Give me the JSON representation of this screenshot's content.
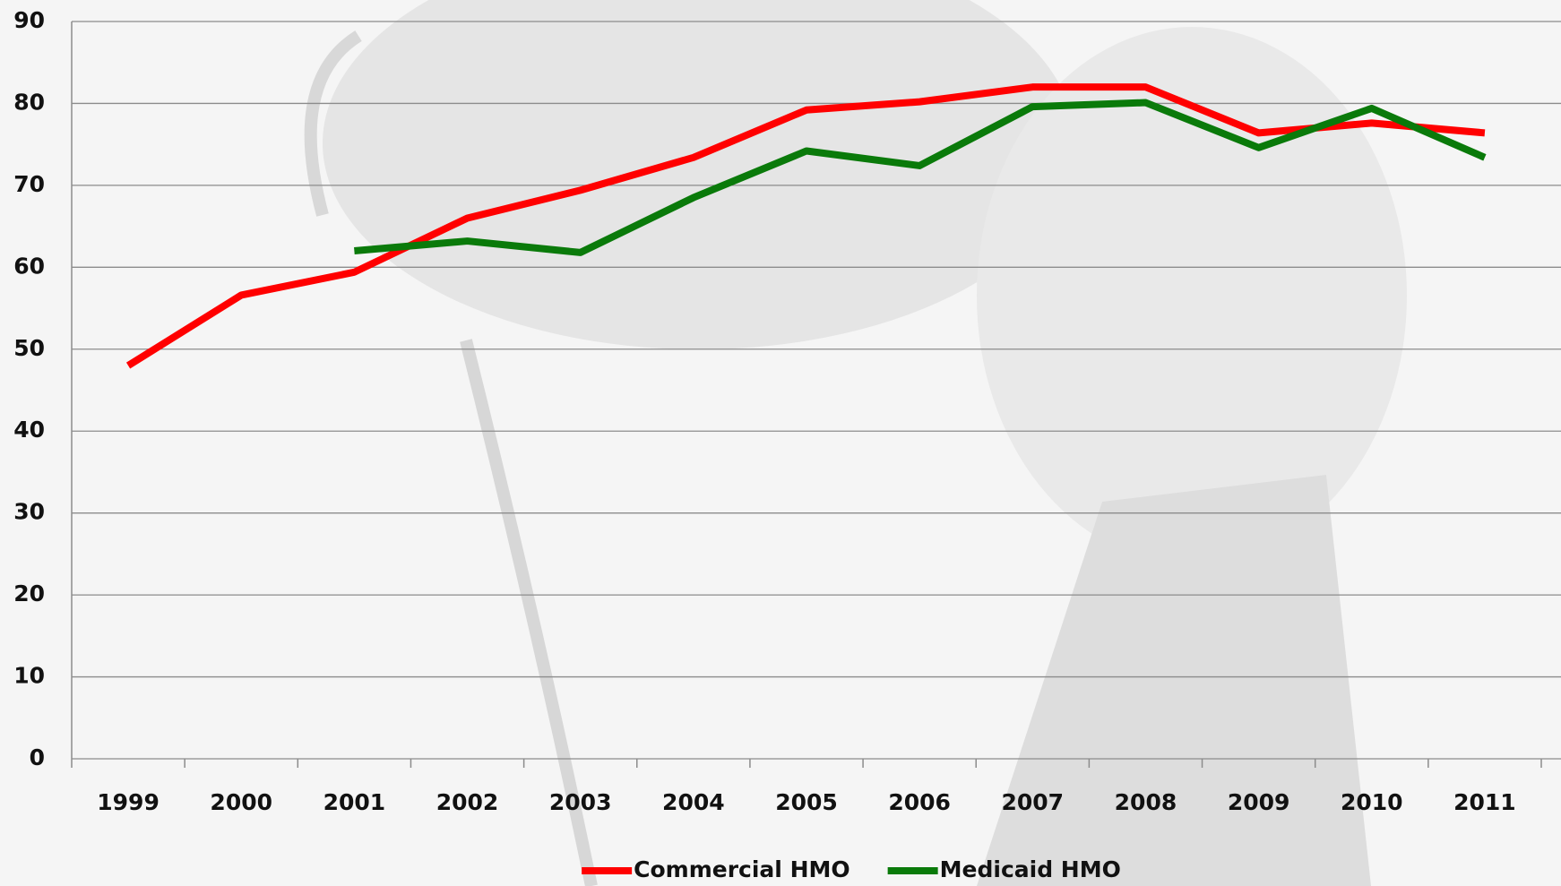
{
  "chart_data": {
    "type": "line",
    "categories": [
      "1999",
      "2000",
      "2001",
      "2002",
      "2003",
      "2004",
      "2005",
      "2006",
      "2007",
      "2008",
      "2009",
      "2010",
      "2011"
    ],
    "series": [
      {
        "name": "Commercial HMO",
        "color": "#ff0000",
        "values": [
          48,
          56.6,
          59.4,
          66,
          69.4,
          73.4,
          79.2,
          80.2,
          82,
          82,
          76.4,
          77.6,
          76.4
        ]
      },
      {
        "name": "Medicaid HMO",
        "color": "#0a7a0a",
        "values": [
          null,
          null,
          62,
          63.2,
          61.8,
          68.5,
          74.2,
          72.4,
          79.6,
          80.1,
          74.6,
          79.4,
          73.4
        ]
      }
    ],
    "ylim": [
      0,
      90
    ],
    "yticks": [
      0,
      10,
      20,
      30,
      40,
      50,
      60,
      70,
      80,
      90
    ],
    "grid": true,
    "legend": "bottom"
  }
}
